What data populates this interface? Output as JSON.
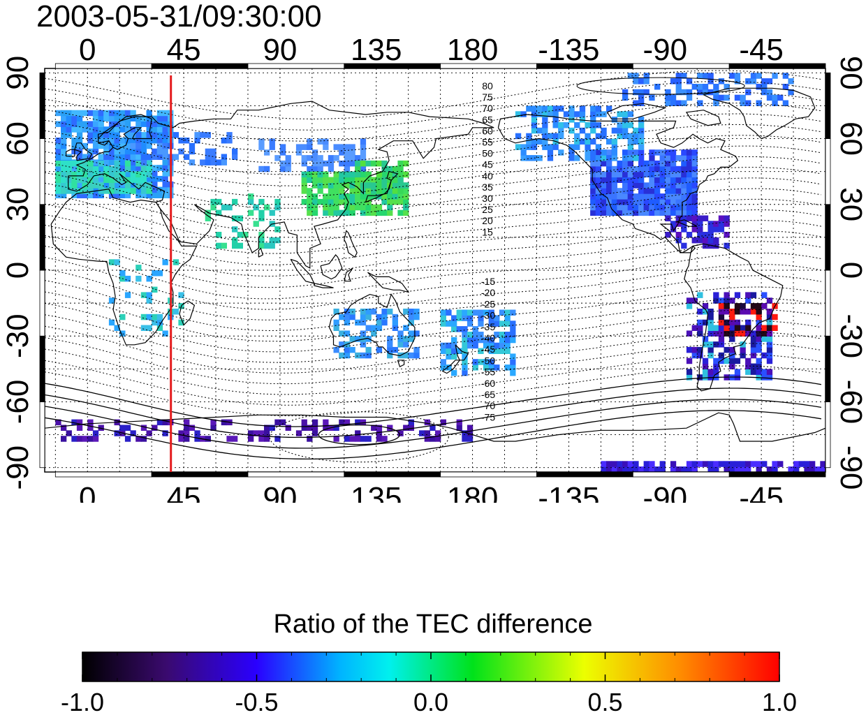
{
  "title": "2003-05-31/09:30:00",
  "map": {
    "lon_ticks": [
      {
        "value": 0,
        "label": "0"
      },
      {
        "value": 45,
        "label": "45"
      },
      {
        "value": 90,
        "label": "90"
      },
      {
        "value": 135,
        "label": "135"
      },
      {
        "value": 180,
        "label": "180"
      },
      {
        "value": 225,
        "label": "-135"
      },
      {
        "value": 270,
        "label": "-90"
      },
      {
        "value": 315,
        "label": "-45"
      }
    ],
    "lat_ticks": [
      {
        "value": 90,
        "label": "90"
      },
      {
        "value": 60,
        "label": "60"
      },
      {
        "value": 30,
        "label": "30"
      },
      {
        "value": 0,
        "label": "0"
      },
      {
        "value": -30,
        "label": "-30"
      },
      {
        "value": -60,
        "label": "-60"
      },
      {
        "value": -90,
        "label": "-90"
      }
    ],
    "lon_range": [
      -20,
      345
    ],
    "lat_range": [
      -92,
      92
    ],
    "marker_longitude": 39,
    "marker_color": "#e41a1c",
    "contour_labels_north": [
      "80",
      "75",
      "70",
      "65",
      "60",
      "55",
      "50",
      "45",
      "40",
      "35",
      "30",
      "25",
      "20",
      "15"
    ],
    "contour_labels_south": [
      "-15",
      "-20",
      "-25",
      "-30",
      "-35",
      "-40",
      "-45",
      "-50",
      "-55",
      "-60",
      "-65",
      "-70",
      "-75"
    ]
  },
  "colorbar": {
    "title": "Ratio of the TEC difference",
    "min": -1.0,
    "max": 1.0,
    "tick_labels": [
      "-1.0",
      "-0.5",
      "0.0",
      "0.5",
      "1.0"
    ]
  }
}
